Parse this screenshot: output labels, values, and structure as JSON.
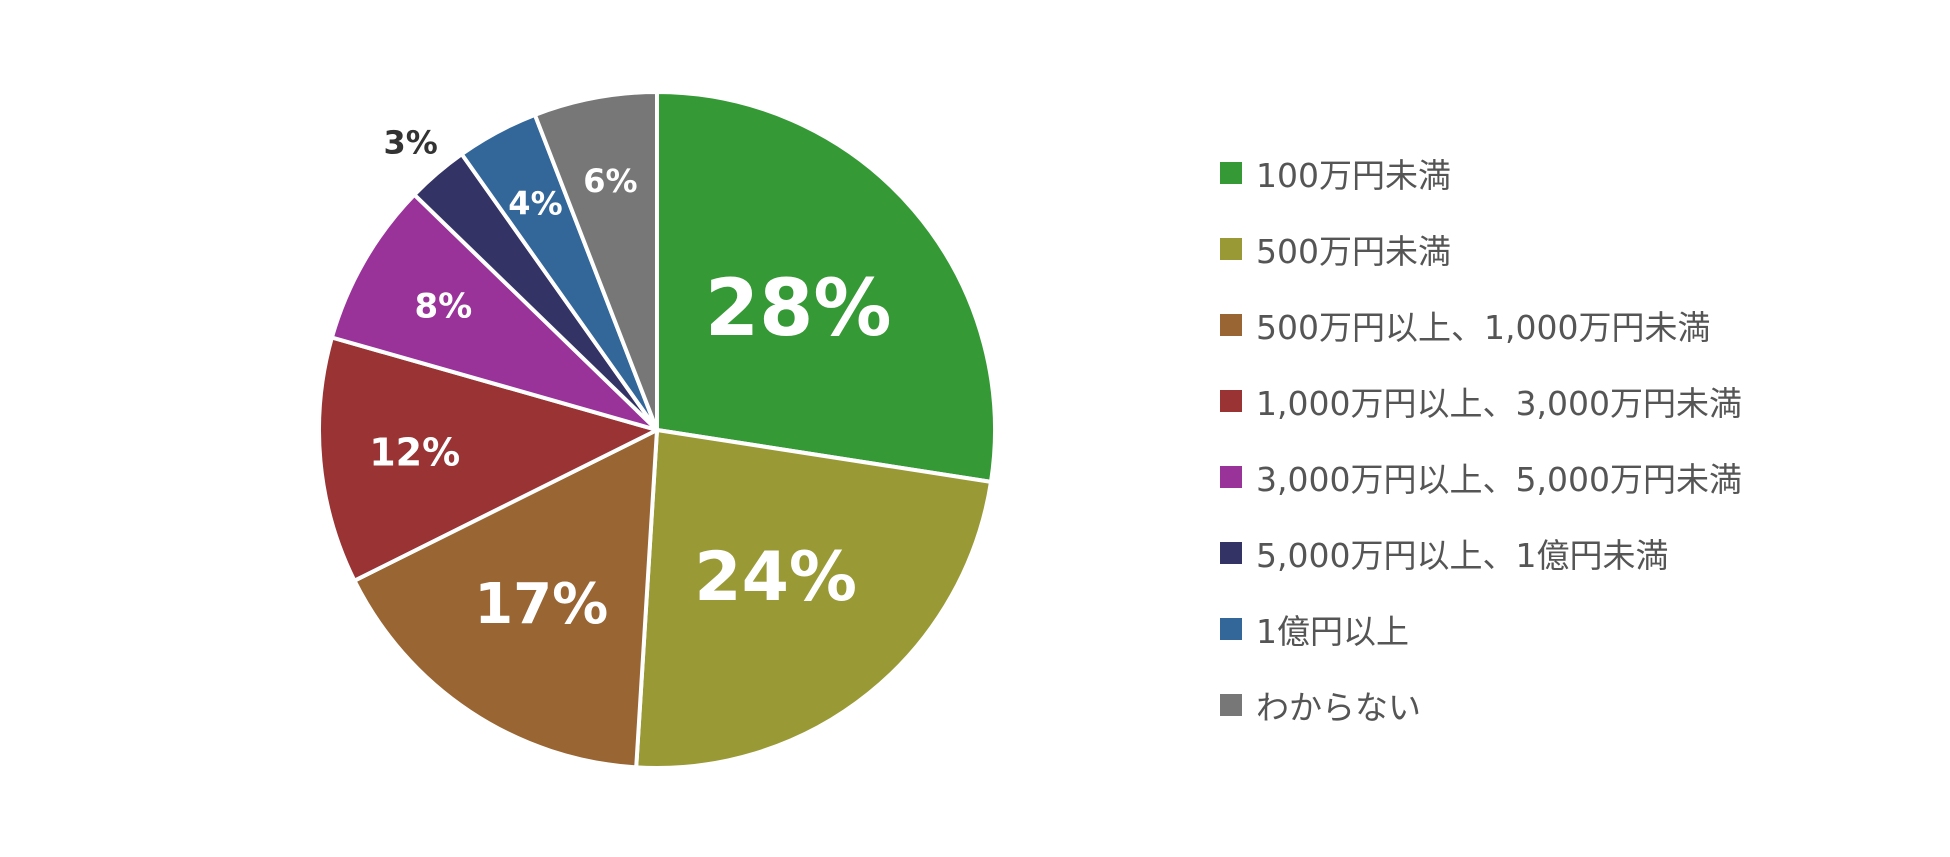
{
  "chart_data": {
    "type": "pie",
    "title": "",
    "start_angle_deg": 0,
    "direction": "clockwise",
    "legend_position": "right",
    "slices": [
      {
        "label": "100万円未満",
        "value": 28,
        "display": "28%",
        "color": "#359a35",
        "label_color": "#ffffff"
      },
      {
        "label": "500万円未満",
        "value": 24,
        "display": "24%",
        "color": "#999a35",
        "label_color": "#ffffff"
      },
      {
        "label": "500万円以上、1,000万円未満",
        "value": 17,
        "display": "17%",
        "color": "#996533",
        "label_color": "#ffffff"
      },
      {
        "label": "1,000万円以上、3,000万円未満",
        "value": 12,
        "display": "12%",
        "color": "#993334",
        "label_color": "#ffffff"
      },
      {
        "label": "3,000万円以上、5,000万円未満",
        "value": 8,
        "display": "8%",
        "color": "#99339a",
        "label_color": "#ffffff"
      },
      {
        "label": "5,000万円以上、1億円未満",
        "value": 3,
        "display": "3%",
        "color": "#333366",
        "label_color": "#333333"
      },
      {
        "label": "1億円以上",
        "value": 4,
        "display": "4%",
        "color": "#336699",
        "label_color": "#ffffff"
      },
      {
        "label": "わからない",
        "value": 6,
        "display": "6%",
        "color": "#777777",
        "label_color": "#ffffff"
      }
    ]
  }
}
